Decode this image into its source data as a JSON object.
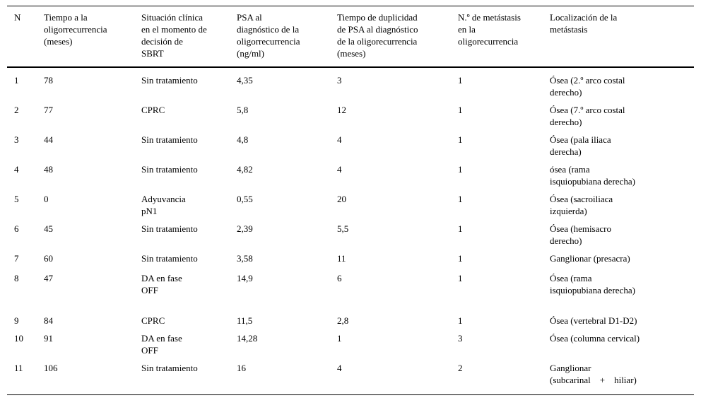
{
  "table": {
    "columns": [
      "N",
      "Tiempo a la\noligorrecurrencia\n(meses)",
      "Situación clínica\nen el momento de\ndecisión de\nSBRT",
      "PSA al\ndiagnóstico de la\noligorrecurrencia\n(ng/ml)",
      "Tiempo de duplicidad\nde PSA al diagnóstico\nde la oligorecurrencia\n(meses)",
      "N.º de metástasis\nen la\noligorecurrencia",
      "Localización de la\nmetástasis"
    ],
    "rows": [
      [
        "1",
        "78",
        "Sin tratamiento",
        "4,35",
        "3",
        "1",
        "Ósea (2.º arco costal\nderecho)"
      ],
      [
        "2",
        "77",
        "CPRC",
        "5,8",
        "12",
        "1",
        "Ósea (7.º arco costal\nderecho)"
      ],
      [
        "3",
        "44",
        "Sin tratamiento",
        "4,8",
        "4",
        "1",
        "Ósea (pala iliaca\nderecha)"
      ],
      [
        "4",
        "48",
        "Sin tratamiento",
        "4,82",
        "4",
        "1",
        "ósea (rama\nisquiopubiana derecha)"
      ],
      [
        "5",
        "0",
        "Adyuvancia\npN1",
        "0,55",
        "20",
        "1",
        "Ósea (sacroiliaca\nizquierda)"
      ],
      [
        "6",
        "45",
        "Sin tratamiento",
        "2,39",
        "5,5",
        "1",
        "Ósea (hemisacro\nderecho)"
      ],
      [
        "7",
        "60",
        "Sin tratamiento",
        "3,58",
        "11",
        "1",
        "Ganglionar (presacra)"
      ],
      [
        "8",
        "47",
        "DA en fase\nOFF",
        "14,9",
        "6",
        "1",
        "Ósea (rama\nisquiopubiana derecha)"
      ],
      [
        "9",
        "84",
        "CPRC",
        "11,5",
        "2,8",
        "1",
        "Ósea (vertebral D1-D2)"
      ],
      [
        "10",
        "91",
        "DA en fase\nOFF",
        "14,28",
        "1",
        "3",
        "Ósea (columna cervical)"
      ],
      [
        "11",
        "106",
        "Sin tratamiento",
        "16",
        "4",
        "2",
        "Ganglionar\n(subcarinal    +    hiliar)"
      ]
    ]
  }
}
